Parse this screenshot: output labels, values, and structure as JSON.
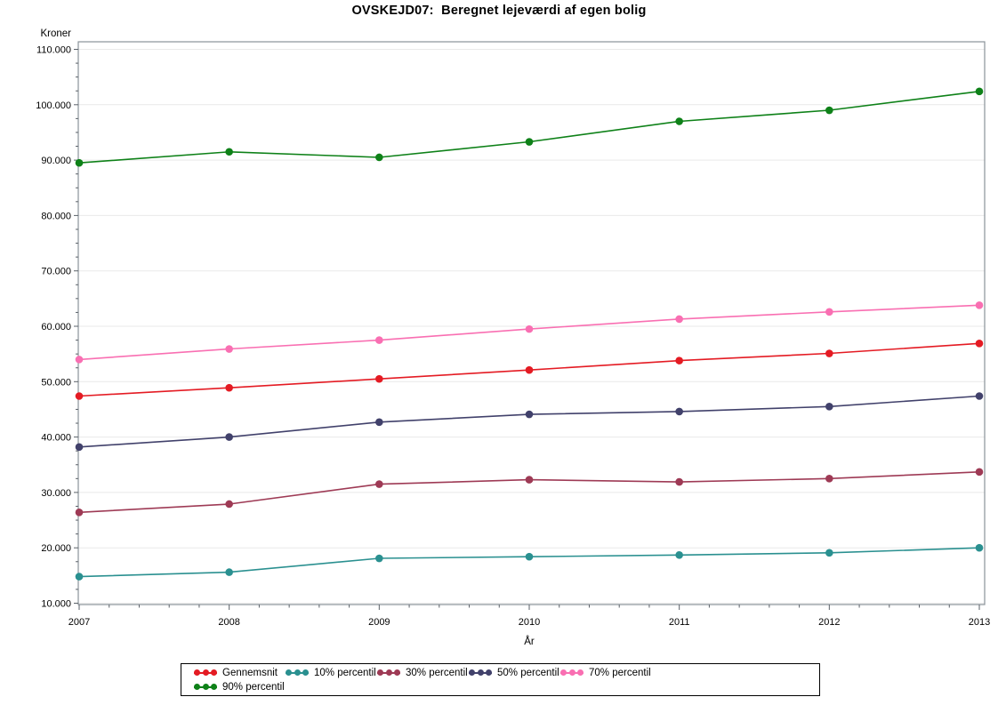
{
  "title": "OVSKEJD07:  Beregnet lejeværdi af egen bolig",
  "y_axis": {
    "label": "Kroner",
    "tick_labels": [
      "10.000",
      "20.000",
      "30.000",
      "40.000",
      "50.000",
      "60.000",
      "70.000",
      "80.000",
      "90.000",
      "100.000",
      "110.000"
    ],
    "tick_values": [
      10000,
      20000,
      30000,
      40000,
      50000,
      60000,
      70000,
      80000,
      90000,
      100000,
      110000
    ],
    "minor_tick_step": 2500
  },
  "x_axis": {
    "label": "År",
    "tick_labels": [
      "2007",
      "2008",
      "2009",
      "2010",
      "2011",
      "2012",
      "2013"
    ],
    "minor_ticks_per_interval": 4
  },
  "chart_data": {
    "type": "line",
    "title": "OVSKEJD07:  Beregnet lejeværdi af egen bolig",
    "xlabel": "År",
    "ylabel": "Kroner",
    "x": [
      2007,
      2008,
      2009,
      2010,
      2011,
      2012,
      2013
    ],
    "ylim": [
      8500,
      111500
    ],
    "grid": "horizontal",
    "legend_position": "bottom",
    "marker": "circle",
    "series": [
      {
        "name": "Gennemsnit",
        "color": "#e41b23",
        "values": [
          47400,
          48900,
          50500,
          52100,
          53800,
          55100,
          56900
        ]
      },
      {
        "name": "10% percentil",
        "color": "#2a9090",
        "values": [
          14800,
          15600,
          18100,
          18400,
          18700,
          19100,
          20000
        ]
      },
      {
        "name": "30% percentil",
        "color": "#9e3a55",
        "values": [
          26400,
          27900,
          31500,
          32300,
          31900,
          32500,
          33700
        ]
      },
      {
        "name": "50% percentil",
        "color": "#41416b",
        "values": [
          38200,
          40000,
          42700,
          44100,
          44600,
          45500,
          47400
        ]
      },
      {
        "name": "70% percentil",
        "color": "#f96fb2",
        "values": [
          54000,
          55900,
          57500,
          59500,
          61300,
          62600,
          63800
        ]
      },
      {
        "name": "90% percentil",
        "color": "#0e8118",
        "values": [
          89500,
          91500,
          90500,
          93300,
          97000,
          99000,
          102400
        ]
      }
    ],
    "colors": {
      "frame": "#8a9299",
      "gridline": "#e9e9e9",
      "tick": "#5a6168"
    }
  }
}
